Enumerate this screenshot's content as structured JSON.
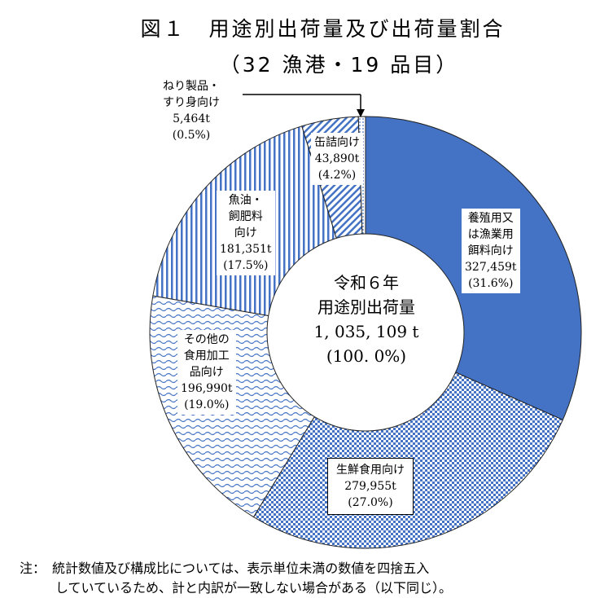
{
  "chart_data": {
    "type": "pie",
    "title": "図１　用途別出荷量及び出荷量割合",
    "subtitle": "（32 漁港・19 品目）",
    "center_label": [
      "令和６年",
      "用途別出荷量",
      "1, 035, 109 t",
      "(100. 0%)"
    ],
    "slices": [
      {
        "lines": [
          "養殖用又",
          "は漁業用",
          "餌料向け"
        ],
        "value_text": "327,459t",
        "pct_text": "(31.6%)",
        "value": 327459,
        "percent": 31.6,
        "color": "#4472C4",
        "pattern": "solid"
      },
      {
        "lines": [
          "生鮮食用向け"
        ],
        "value_text": "279,955t",
        "pct_text": "(27.0%)",
        "value": 279955,
        "percent": 27.0,
        "color": "#4472C4",
        "pattern": "checker"
      },
      {
        "lines": [
          "その他の",
          "食用加工",
          "品向け"
        ],
        "value_text": "196,990t",
        "pct_text": "(19.0%)",
        "value": 196990,
        "percent": 19.0,
        "color": "#4472C4",
        "pattern": "wave"
      },
      {
        "lines": [
          "魚油・",
          "飼肥料",
          "向け"
        ],
        "value_text": "181,351t",
        "pct_text": "(17.5%)",
        "value": 181351,
        "percent": 17.5,
        "color": "#4472C4",
        "pattern": "vertical"
      },
      {
        "lines": [
          "缶詰向け"
        ],
        "value_text": "43,890t",
        "pct_text": "(4.2%)",
        "value": 43890,
        "percent": 4.2,
        "color": "#4472C4",
        "pattern": "diagonal"
      },
      {
        "lines": [
          "ねり製品・",
          "すり身向け"
        ],
        "value_text": "5,464t",
        "pct_text": "(0.5%)",
        "value": 5464,
        "percent": 0.5,
        "color": "#4472C4",
        "pattern": "dots"
      }
    ]
  },
  "note": {
    "line1": "注：　統計数値及び構成比については、表示単位未満の数値を四捨五入",
    "line2": "していているため、計と内訳が一致しない場合がある（以下同じ）。"
  }
}
